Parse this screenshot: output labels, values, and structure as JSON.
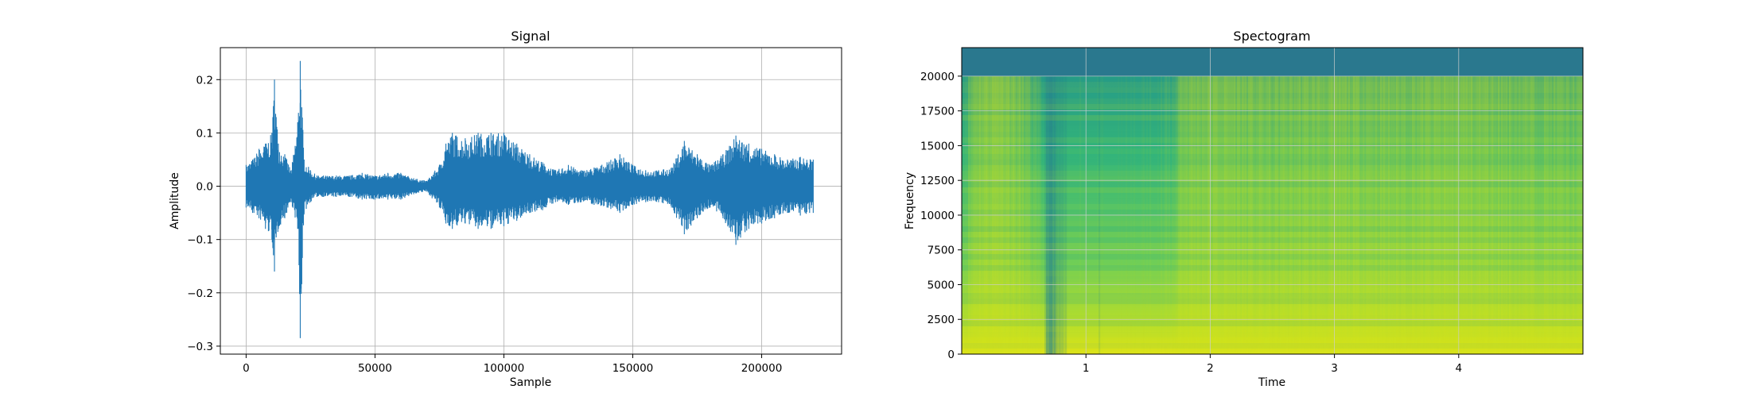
{
  "chart_data": [
    {
      "type": "line",
      "title": "Signal",
      "xlabel": "Sample",
      "ylabel": "Amplitude",
      "xlim": [
        -10000,
        231000
      ],
      "ylim": [
        -0.315,
        0.26
      ],
      "x_ticks": [
        0,
        50000,
        100000,
        150000,
        200000
      ],
      "x_tick_labels": [
        "0",
        "50000",
        "100000",
        "150000",
        "200000"
      ],
      "y_ticks": [
        -0.3,
        -0.2,
        -0.1,
        0.0,
        0.1,
        0.2
      ],
      "y_tick_labels": [
        "−0.3",
        "−0.2",
        "−0.1",
        "0.0",
        "0.1",
        "0.2"
      ],
      "grid": true,
      "color": "#1f77b4",
      "series": [
        {
          "x": [
            0,
            2500,
            5000,
            7500,
            10000,
            11000,
            12500,
            15000,
            17500,
            20000,
            21000,
            22500,
            25000,
            27500,
            30000,
            35000,
            40000,
            45000,
            50000,
            55000,
            60000,
            65000,
            70000,
            75000,
            77500,
            80000,
            85000,
            90000,
            95000,
            100000,
            105000,
            110000,
            115000,
            120000,
            125000,
            130000,
            135000,
            140000,
            145000,
            150000,
            155000,
            160000,
            165000,
            170000,
            175000,
            180000,
            185000,
            190000,
            195000,
            200000,
            205000,
            210000,
            215000,
            220000
          ],
          "upper": [
            0.04,
            0.05,
            0.07,
            0.08,
            0.1,
            0.2,
            0.08,
            0.06,
            0.03,
            0.12,
            0.235,
            0.05,
            0.03,
            0.02,
            0.02,
            0.02,
            0.02,
            0.025,
            0.02,
            0.025,
            0.025,
            0.015,
            0.01,
            0.04,
            0.08,
            0.1,
            0.09,
            0.1,
            0.1,
            0.1,
            0.08,
            0.06,
            0.045,
            0.03,
            0.04,
            0.03,
            0.035,
            0.045,
            0.06,
            0.04,
            0.03,
            0.03,
            0.035,
            0.085,
            0.06,
            0.04,
            0.06,
            0.095,
            0.08,
            0.07,
            0.06,
            0.05,
            0.055,
            0.05
          ],
          "lower": [
            -0.04,
            -0.05,
            -0.06,
            -0.08,
            -0.1,
            -0.16,
            -0.08,
            -0.06,
            -0.03,
            -0.08,
            -0.285,
            -0.05,
            -0.03,
            -0.02,
            -0.02,
            -0.02,
            -0.02,
            -0.025,
            -0.025,
            -0.025,
            -0.025,
            -0.015,
            -0.01,
            -0.04,
            -0.07,
            -0.08,
            -0.07,
            -0.08,
            -0.08,
            -0.075,
            -0.065,
            -0.05,
            -0.045,
            -0.03,
            -0.035,
            -0.03,
            -0.035,
            -0.04,
            -0.05,
            -0.035,
            -0.03,
            -0.03,
            -0.04,
            -0.09,
            -0.06,
            -0.04,
            -0.06,
            -0.11,
            -0.08,
            -0.07,
            -0.06,
            -0.05,
            -0.055,
            -0.05
          ]
        }
      ]
    },
    {
      "type": "heatmap",
      "title": "Spectogram",
      "xlabel": "Time",
      "ylabel": "Frequency",
      "xlim": [
        0,
        5.0
      ],
      "ylim": [
        0,
        22050
      ],
      "x_ticks": [
        1,
        2,
        3,
        4
      ],
      "x_tick_labels": [
        "1",
        "2",
        "3",
        "4"
      ],
      "y_ticks": [
        0,
        2500,
        5000,
        7500,
        10000,
        12500,
        15000,
        17500,
        20000
      ],
      "y_tick_labels": [
        "0",
        "2500",
        "5000",
        "7500",
        "10000",
        "12500",
        "15000",
        "17500",
        "20000"
      ],
      "grid": true,
      "colormap": "viridis",
      "cutoff_frequency": 20000,
      "time_intensity": [
        [
          0.0,
          0.55
        ],
        [
          0.1,
          0.75
        ],
        [
          0.3,
          0.8
        ],
        [
          0.5,
          0.7
        ],
        [
          0.65,
          0.55
        ],
        [
          0.7,
          0.25
        ],
        [
          0.75,
          0.4
        ],
        [
          0.9,
          0.55
        ],
        [
          1.2,
          0.52
        ],
        [
          1.5,
          0.55
        ],
        [
          1.7,
          0.58
        ],
        [
          1.75,
          0.72
        ],
        [
          2.0,
          0.75
        ],
        [
          2.5,
          0.72
        ],
        [
          3.0,
          0.74
        ],
        [
          3.5,
          0.73
        ],
        [
          4.0,
          0.75
        ],
        [
          4.5,
          0.72
        ],
        [
          5.0,
          0.7
        ]
      ]
    }
  ]
}
